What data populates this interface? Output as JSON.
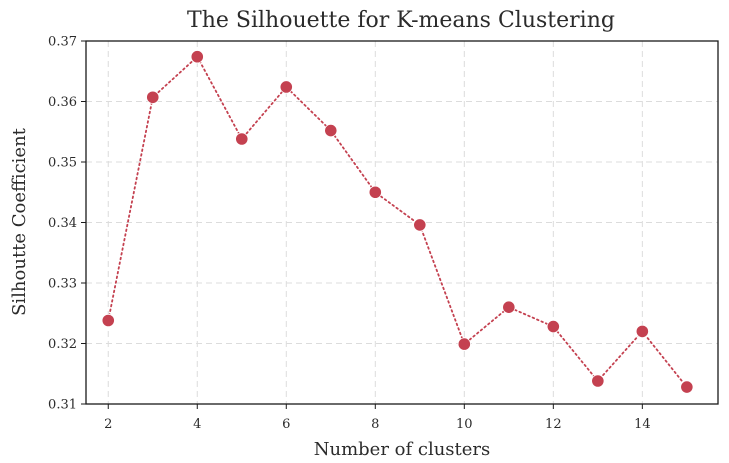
{
  "chart_data": {
    "type": "line",
    "title": "The Silhouette for K-means Clustering",
    "xlabel": "Number of clusters",
    "ylabel": "Silhoutte Coefficient",
    "xlim": [
      1.5,
      15.7
    ],
    "ylim": [
      0.31,
      0.37
    ],
    "x_ticks": [
      2,
      4,
      6,
      8,
      10,
      12,
      14
    ],
    "x_tick_labels": [
      "2",
      "4",
      "6",
      "8",
      "10",
      "12",
      "14"
    ],
    "y_ticks": [
      0.31,
      0.32,
      0.33,
      0.34,
      0.35,
      0.36,
      0.37
    ],
    "y_tick_labels": [
      "0.31",
      "0.32",
      "0.33",
      "0.34",
      "0.35",
      "0.36",
      "0.37"
    ],
    "grid": true,
    "series": [
      {
        "line_style": "dotted",
        "marker": "circle",
        "color": "#c44150",
        "x": [
          2,
          3,
          4,
          5,
          6,
          7,
          8,
          9,
          10,
          11,
          12,
          13,
          14,
          15
        ],
        "y": [
          0.3238,
          0.3607,
          0.3674,
          0.3538,
          0.3624,
          0.3552,
          0.345,
          0.3396,
          0.3199,
          0.326,
          0.3228,
          0.3138,
          0.322,
          0.3128
        ]
      }
    ]
  }
}
